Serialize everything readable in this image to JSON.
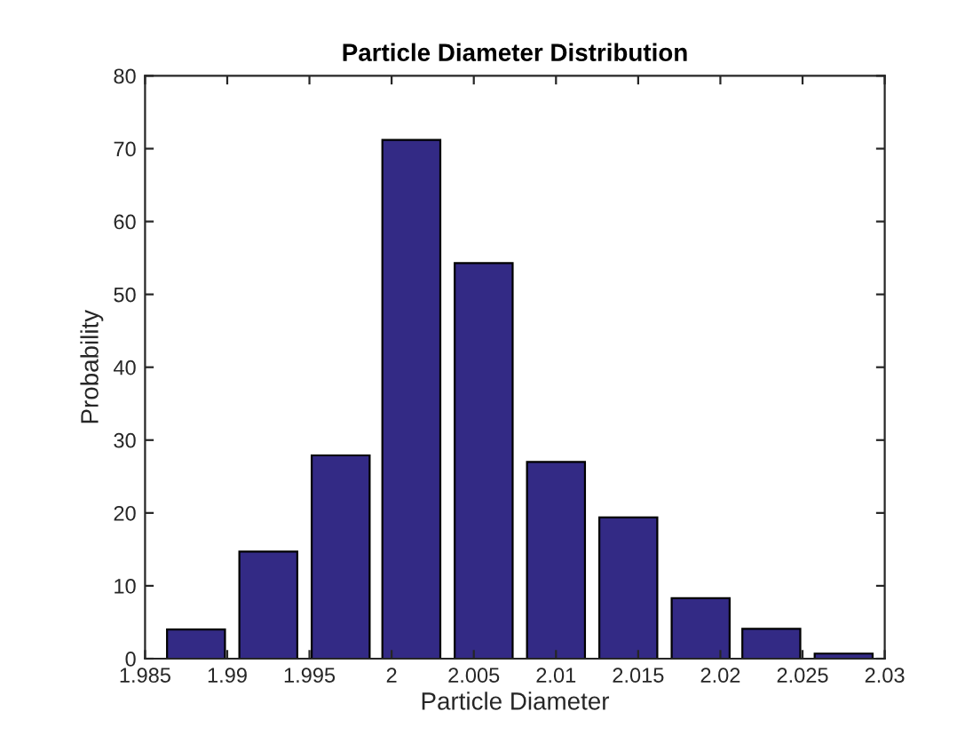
{
  "chart_data": {
    "type": "bar",
    "title": "Particle Diameter Distribution",
    "xlabel": "Particle Diameter",
    "ylabel": "Probability",
    "x": [
      1.9881,
      1.9925,
      1.9969,
      2.0012,
      2.0056,
      2.01,
      2.0144,
      2.0188,
      2.0231,
      2.0275
    ],
    "values": [
      4,
      14.7,
      27.9,
      71.2,
      54.3,
      27.0,
      19.4,
      8.3,
      4.1,
      0.7
    ],
    "color": "#332a85",
    "xlim": [
      1.985,
      2.03
    ],
    "xticks": [
      1.985,
      1.99,
      1.995,
      2,
      2.005,
      2.01,
      2.015,
      2.02,
      2.025,
      2.03
    ],
    "ylim": [
      0,
      80
    ],
    "yticks": [
      0,
      10,
      20,
      30,
      40,
      50,
      60,
      70,
      80
    ],
    "grid": false
  }
}
